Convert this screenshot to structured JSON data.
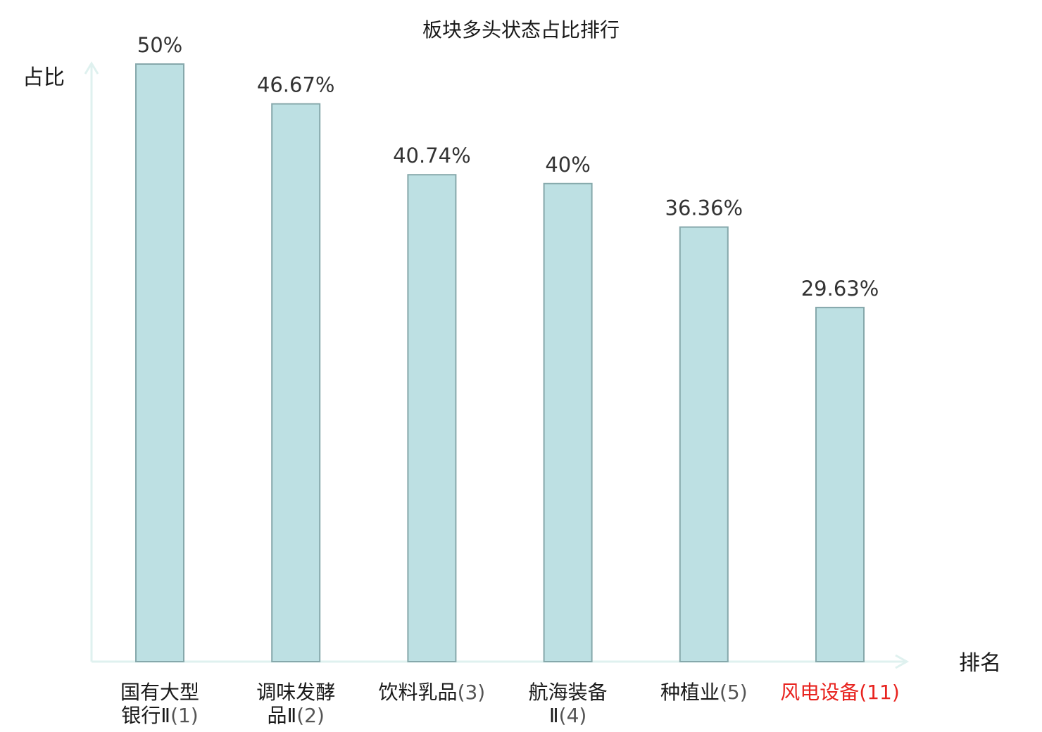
{
  "chart_data": {
    "type": "bar",
    "title": "板块多头状态占比排行",
    "xlabel": "排名",
    "ylabel": "占比",
    "ylim": [
      0,
      50
    ],
    "categories": [
      {
        "name_lines": [
          "国有大型",
          "银行Ⅱ"
        ],
        "rank": "(1)",
        "highlight": false
      },
      {
        "name_lines": [
          "调味发酵",
          "品Ⅱ"
        ],
        "rank": "(2)",
        "highlight": false
      },
      {
        "name_lines": [
          "饮料乳品"
        ],
        "rank": "(3)",
        "highlight": false
      },
      {
        "name_lines": [
          "航海装备",
          "Ⅱ"
        ],
        "rank": "(4)",
        "highlight": false
      },
      {
        "name_lines": [
          "种植业"
        ],
        "rank": "(5)",
        "highlight": false
      },
      {
        "name_lines": [
          "风电设备"
        ],
        "rank": "(11)",
        "highlight": true
      }
    ],
    "values": [
      50,
      46.67,
      40.74,
      40,
      36.36,
      29.63
    ],
    "value_labels": [
      "50%",
      "46.67%",
      "40.74%",
      "40%",
      "36.36%",
      "29.63%"
    ],
    "grid": false,
    "colors": {
      "bar_fill": "#bde0e3",
      "bar_stroke": "#86a8ab",
      "axis": "#dff1ef",
      "highlight": "#e8231f"
    }
  }
}
